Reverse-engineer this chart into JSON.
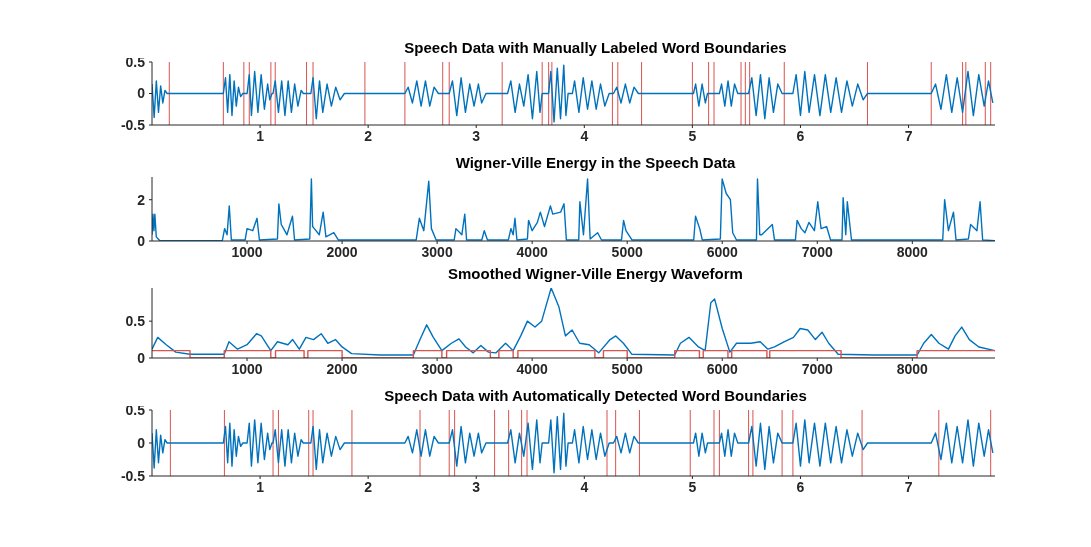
{
  "chart_data": [
    {
      "type": "line",
      "title": "Speech Data with Manually Labeled Word Boundaries",
      "xlim": [
        0,
        7.8
      ],
      "xticks": [
        1,
        2,
        3,
        4,
        5,
        6,
        7
      ],
      "ylim": [
        -0.5,
        0.5
      ],
      "yticks": [
        -0.5,
        0,
        0.5
      ],
      "grid": false,
      "series": [
        {
          "color": "#0072bd",
          "x": [
            0,
            0.02,
            0.04,
            0.06,
            0.08,
            0.1,
            0.12,
            0.14,
            0.16,
            0.66,
            0.68,
            0.7,
            0.72,
            0.74,
            0.76,
            0.78,
            0.8,
            0.82,
            0.84,
            0.88,
            0.9,
            0.92,
            0.95,
            0.98,
            1.01,
            1.04,
            1.07,
            1.09,
            1.11,
            1.12,
            1.14,
            1.17,
            1.2,
            1.23,
            1.26,
            1.29,
            1.32,
            1.35,
            1.38,
            1.4,
            1.47,
            1.49,
            1.52,
            1.55,
            1.58,
            1.62,
            1.66,
            1.7,
            1.74,
            1.78,
            2.34,
            2.37,
            2.41,
            2.45,
            2.49,
            2.53,
            2.57,
            2.61,
            2.65,
            2.75,
            2.78,
            2.82,
            2.86,
            2.9,
            2.94,
            2.98,
            3.02,
            3.05,
            3.09,
            3.29,
            3.32,
            3.36,
            3.4,
            3.44,
            3.48,
            3.52,
            3.56,
            3.59,
            3.61,
            3.67,
            3.69,
            3.72,
            3.75,
            3.78,
            3.81,
            3.83,
            3.85,
            3.89,
            3.91,
            3.95,
            3.99,
            4.03,
            4.07,
            4.11,
            4.15,
            4.19,
            4.23,
            4.27,
            4.3,
            4.34,
            4.38,
            4.42,
            4.46,
            4.5,
            5.01,
            5.03,
            5.06,
            5.09,
            5.12,
            5.14,
            5.25,
            5.27,
            5.3,
            5.33,
            5.36,
            5.39,
            5.42,
            5.52,
            5.55,
            5.59,
            5.63,
            5.67,
            5.71,
            5.75,
            5.79,
            5.83,
            5.93,
            5.96,
            6,
            6.04,
            6.08,
            6.13,
            6.18,
            6.23,
            6.28,
            6.33,
            6.38,
            6.43,
            6.48,
            6.53,
            6.58,
            6.62,
            7.21,
            7.25,
            7.3,
            7.35,
            7.4,
            7.45,
            7.5,
            7.55,
            7.6,
            7.65,
            7.7,
            7.74,
            7.78
          ],
          "values": [
            0.15,
            -0.38,
            0.2,
            -0.3,
            0.12,
            -0.15,
            0.05,
            0,
            0,
            0,
            0.25,
            -0.3,
            0.3,
            -0.35,
            0.2,
            -0.2,
            0.1,
            -0.05,
            0,
            0,
            0.3,
            -0.35,
            0.35,
            -0.3,
            0.3,
            -0.25,
            0.15,
            -0.1,
            0,
            0,
            0.2,
            -0.3,
            0.2,
            -0.35,
            0.2,
            -0.3,
            0.15,
            -0.2,
            0.05,
            0,
            0,
            0.25,
            -0.4,
            0.2,
            -0.3,
            0.15,
            -0.2,
            0.1,
            -0.1,
            0,
            0,
            0.1,
            -0.15,
            0.2,
            -0.2,
            0.2,
            -0.2,
            0.1,
            0,
            0,
            0.2,
            -0.35,
            0.25,
            -0.3,
            0.15,
            -0.2,
            0.15,
            -0.15,
            0,
            0,
            0.2,
            -0.3,
            0.15,
            -0.2,
            0.3,
            -0.4,
            0.35,
            -0.3,
            0,
            0,
            0.35,
            -0.45,
            0.4,
            -0.4,
            0.45,
            -0.35,
            0,
            0,
            0.2,
            -0.3,
            0.25,
            -0.25,
            0.2,
            -0.25,
            0.15,
            -0.2,
            0,
            0,
            0.1,
            -0.15,
            0.15,
            -0.15,
            0.1,
            0,
            0,
            0.15,
            -0.2,
            0.15,
            -0.15,
            0,
            0,
            0.15,
            -0.2,
            0.2,
            -0.2,
            0.15,
            0,
            0,
            0.25,
            -0.35,
            0.3,
            -0.4,
            0.25,
            -0.3,
            0.15,
            0,
            0,
            0.3,
            -0.35,
            0.35,
            -0.3,
            0.3,
            -0.35,
            0.3,
            -0.3,
            0.25,
            -0.3,
            0.2,
            -0.2,
            0.15,
            -0.1,
            0,
            0,
            0.15,
            -0.25,
            0.3,
            -0.3,
            0.25,
            -0.3,
            0.35,
            -0.35,
            0.3,
            -0.2,
            0.2,
            -0.15
          ]
        }
      ],
      "ref_lines": [
        {
          "axis": "x",
          "value": 0.16,
          "color": "#d9534f"
        },
        {
          "axis": "x",
          "value": 0.66,
          "color": "#d9534f"
        },
        {
          "axis": "x",
          "value": 0.85,
          "color": "#d9534f"
        },
        {
          "axis": "x",
          "value": 0.9,
          "color": "#d9534f"
        },
        {
          "axis": "x",
          "value": 1.1,
          "color": "#d9534f"
        },
        {
          "axis": "x",
          "value": 1.14,
          "color": "#d9534f"
        },
        {
          "axis": "x",
          "value": 1.43,
          "color": "#d9534f"
        },
        {
          "axis": "x",
          "value": 1.49,
          "color": "#d9534f"
        },
        {
          "axis": "x",
          "value": 1.97,
          "color": "#d9534f"
        },
        {
          "axis": "x",
          "value": 2.34,
          "color": "#d9534f"
        },
        {
          "axis": "x",
          "value": 2.69,
          "color": "#d9534f"
        },
        {
          "axis": "x",
          "value": 2.75,
          "color": "#d9534f"
        },
        {
          "axis": "x",
          "value": 3.24,
          "color": "#d9534f"
        },
        {
          "axis": "x",
          "value": 3.61,
          "color": "#d9534f"
        },
        {
          "axis": "x",
          "value": 3.67,
          "color": "#d9534f"
        },
        {
          "axis": "x",
          "value": 3.7,
          "color": "#d9534f"
        },
        {
          "axis": "x",
          "value": 4.26,
          "color": "#d9534f"
        },
        {
          "axis": "x",
          "value": 4.31,
          "color": "#d9534f"
        },
        {
          "axis": "x",
          "value": 4.53,
          "color": "#d9534f"
        },
        {
          "axis": "x",
          "value": 5.0,
          "color": "#d9534f"
        },
        {
          "axis": "x",
          "value": 5.15,
          "color": "#d9534f"
        },
        {
          "axis": "x",
          "value": 5.2,
          "color": "#d9534f"
        },
        {
          "axis": "x",
          "value": 5.45,
          "color": "#d9534f"
        },
        {
          "axis": "x",
          "value": 5.49,
          "color": "#d9534f"
        },
        {
          "axis": "x",
          "value": 5.53,
          "color": "#d9534f"
        },
        {
          "axis": "x",
          "value": 5.85,
          "color": "#d9534f"
        },
        {
          "axis": "x",
          "value": 6.62,
          "color": "#d9534f"
        },
        {
          "axis": "x",
          "value": 7.21,
          "color": "#d9534f"
        },
        {
          "axis": "x",
          "value": 7.5,
          "color": "#d9534f"
        },
        {
          "axis": "x",
          "value": 7.53,
          "color": "#d9534f"
        },
        {
          "axis": "x",
          "value": 7.71,
          "color": "#d9534f"
        },
        {
          "axis": "x",
          "value": 7.76,
          "color": "#d9534f"
        }
      ]
    },
    {
      "type": "line",
      "title": "Wigner-Ville Energy in the Speech Data",
      "xlim": [
        0,
        8870
      ],
      "xticks": [
        1000,
        2000,
        3000,
        4000,
        5000,
        6000,
        7000,
        8000
      ],
      "ylim": [
        0,
        3.1
      ],
      "yticks": [
        0,
        2
      ],
      "grid": false,
      "series": [
        {
          "color": "#0072bd",
          "x": [
            0,
            10,
            20,
            30,
            45,
            80,
            740,
            764,
            790,
            813,
            835,
            980,
            1000,
            1060,
            1105,
            1130,
            1320,
            1335,
            1360,
            1385,
            1420,
            1478,
            1500,
            1660,
            1677,
            1690,
            1708,
            1760,
            1801,
            1830,
            1913,
            1960,
            2780,
            2813,
            2860,
            2912,
            2940,
            2990,
            3180,
            3198,
            3260,
            3291,
            3310,
            3470,
            3496,
            3530,
            3750,
            3776,
            3800,
            3819,
            3840,
            3950,
            3962,
            4000,
            4055,
            4086,
            4130,
            4192,
            4217,
            4300,
            4335,
            4360,
            4490,
            4502,
            4540,
            4583,
            4610,
            4689,
            4730,
            4940,
            4962,
            4987,
            5050,
            5700,
            5719,
            5763,
            5790,
            5980,
            5999,
            6042,
            6086,
            6110,
            6150,
            6360,
            6371,
            6395,
            6415,
            6527,
            6550,
            6770,
            6788,
            6831,
            6870,
            6912,
            6970,
            7005,
            7040,
            7098,
            7140,
            7260,
            7272,
            7300,
            7316,
            7360,
            8320,
            8340,
            8380,
            8433,
            8460,
            8590,
            8613,
            8680,
            8713,
            8740,
            8870
          ],
          "values": [
            0.3,
            1.3,
            0.5,
            1.3,
            0.2,
            0.02,
            0.02,
            0.6,
            0.3,
            1.7,
            0.05,
            0.05,
            0.6,
            0.5,
            1.1,
            0.05,
            0.1,
            1.8,
            0.8,
            0.6,
            0.3,
            1.2,
            0.05,
            0.1,
            3.0,
            0.7,
            0.6,
            0.3,
            1.4,
            0.2,
            0.4,
            0.05,
            0.05,
            1.1,
            0.5,
            2.9,
            0.6,
            0.05,
            0.05,
            0.6,
            0.3,
            1.3,
            0.05,
            0.05,
            0.5,
            0.05,
            0.05,
            0.6,
            0.3,
            1.1,
            0.05,
            0.1,
            1.0,
            0.5,
            0.9,
            1.4,
            0.7,
            1.7,
            1.3,
            1.4,
            1.8,
            0.05,
            0.05,
            1.9,
            0.3,
            3.0,
            0.1,
            0.4,
            0.05,
            0.05,
            1.0,
            0.5,
            0.05,
            0.05,
            1.2,
            0.6,
            0.05,
            0.1,
            3.0,
            2.3,
            2.0,
            0.4,
            0.05,
            0.05,
            3.0,
            0.3,
            0.3,
            0.8,
            0.05,
            0.05,
            1.0,
            0.6,
            0.4,
            0.9,
            0.5,
            1.9,
            0.6,
            0.7,
            0.05,
            0.05,
            2.1,
            0.3,
            1.9,
            0.05,
            0.05,
            2.0,
            0.5,
            1.4,
            0.05,
            0.1,
            0.8,
            0.5,
            1.9,
            0.05,
            0.02
          ]
        }
      ]
    },
    {
      "type": "line",
      "title": "Smoothed Wigner-Ville Energy Waveform",
      "xlim": [
        0,
        8870
      ],
      "xticks": [
        1000,
        2000,
        3000,
        4000,
        5000,
        6000,
        7000,
        8000
      ],
      "ylim": [
        0,
        0.95
      ],
      "yticks": [
        0,
        0.5
      ],
      "grid": false,
      "series": [
        {
          "color": "#0072bd",
          "x": [
            0,
            60,
            150,
            250,
            400,
            760,
            810,
            900,
            1000,
            1100,
            1150,
            1250,
            1320,
            1430,
            1480,
            1550,
            1620,
            1700,
            1780,
            1850,
            1930,
            2000,
            2100,
            2400,
            2750,
            2820,
            2890,
            2960,
            3050,
            3150,
            3230,
            3300,
            3380,
            3460,
            3540,
            3620,
            3720,
            3800,
            3880,
            3950,
            4030,
            4100,
            4200,
            4280,
            4350,
            4420,
            4500,
            4600,
            4700,
            4820,
            4880,
            4960,
            5050,
            5500,
            5560,
            5650,
            5750,
            5820,
            5880,
            5920,
            6000,
            6080,
            6150,
            6300,
            6400,
            6480,
            6550,
            6650,
            6750,
            6820,
            6900,
            6980,
            7050,
            7120,
            7220,
            7600,
            8050,
            8120,
            8200,
            8280,
            8380,
            8450,
            8520,
            8600,
            8700,
            8870
          ],
          "values": [
            0.12,
            0.28,
            0.18,
            0.08,
            0.05,
            0.05,
            0.22,
            0.12,
            0.18,
            0.33,
            0.3,
            0.1,
            0.22,
            0.18,
            0.25,
            0.12,
            0.28,
            0.25,
            0.33,
            0.2,
            0.25,
            0.15,
            0.06,
            0.04,
            0.04,
            0.25,
            0.45,
            0.28,
            0.1,
            0.2,
            0.26,
            0.15,
            0.07,
            0.17,
            0.08,
            0.07,
            0.2,
            0.1,
            0.3,
            0.5,
            0.42,
            0.5,
            0.95,
            0.7,
            0.3,
            0.38,
            0.2,
            0.18,
            0.07,
            0.25,
            0.3,
            0.2,
            0.05,
            0.04,
            0.2,
            0.28,
            0.15,
            0.1,
            0.75,
            0.8,
            0.4,
            0.08,
            0.2,
            0.2,
            0.22,
            0.12,
            0.15,
            0.22,
            0.28,
            0.4,
            0.38,
            0.25,
            0.35,
            0.2,
            0.05,
            0.04,
            0.04,
            0.2,
            0.32,
            0.2,
            0.12,
            0.3,
            0.42,
            0.25,
            0.15,
            0.1
          ]
        },
        {
          "type": "step",
          "color": "#d9534f",
          "x": [
            0,
            400,
            760,
            1250,
            1300,
            1600,
            1640,
            2000,
            2750,
            3050,
            3100,
            3560,
            3650,
            3800,
            3850,
            4660,
            4750,
            5000,
            5500,
            5760,
            5800,
            6060,
            6100,
            6470,
            6500,
            7250,
            8050,
            8870
          ],
          "values": [
            0.1,
            0,
            0.1,
            0,
            0.1,
            0,
            0.1,
            0,
            0.1,
            0,
            0.1,
            0,
            0.1,
            0,
            0.1,
            0,
            0.1,
            0,
            0.1,
            0,
            0.1,
            0,
            0.1,
            0,
            0.1,
            0,
            0.1,
            0.1
          ]
        }
      ]
    },
    {
      "type": "line",
      "title": "Speech Data with Automatically Detected Word Boundaries",
      "xlim": [
        0,
        7.8
      ],
      "xticks": [
        1,
        2,
        3,
        4,
        5,
        6,
        7
      ],
      "ylim": [
        -0.5,
        0.5
      ],
      "yticks": [
        -0.5,
        0,
        0.5
      ],
      "grid": false,
      "series": [
        {
          "color": "#0072bd",
          "x": [
            0,
            0.02,
            0.04,
            0.06,
            0.08,
            0.1,
            0.12,
            0.14,
            0.16,
            0.66,
            0.68,
            0.7,
            0.72,
            0.74,
            0.76,
            0.78,
            0.8,
            0.82,
            0.84,
            0.88,
            0.9,
            0.92,
            0.95,
            0.98,
            1.01,
            1.04,
            1.07,
            1.09,
            1.11,
            1.12,
            1.14,
            1.17,
            1.2,
            1.23,
            1.26,
            1.29,
            1.32,
            1.35,
            1.38,
            1.4,
            1.47,
            1.49,
            1.52,
            1.55,
            1.58,
            1.62,
            1.66,
            1.7,
            1.74,
            1.78,
            2.34,
            2.37,
            2.41,
            2.45,
            2.49,
            2.53,
            2.57,
            2.61,
            2.65,
            2.75,
            2.78,
            2.82,
            2.86,
            2.9,
            2.94,
            2.98,
            3.02,
            3.05,
            3.09,
            3.29,
            3.32,
            3.36,
            3.4,
            3.44,
            3.48,
            3.52,
            3.56,
            3.59,
            3.61,
            3.67,
            3.69,
            3.72,
            3.75,
            3.78,
            3.81,
            3.83,
            3.85,
            3.89,
            3.91,
            3.95,
            3.99,
            4.03,
            4.07,
            4.11,
            4.15,
            4.19,
            4.23,
            4.27,
            4.3,
            4.34,
            4.38,
            4.42,
            4.46,
            4.5,
            5.01,
            5.03,
            5.06,
            5.09,
            5.12,
            5.14,
            5.25,
            5.27,
            5.3,
            5.33,
            5.36,
            5.39,
            5.42,
            5.52,
            5.55,
            5.59,
            5.63,
            5.67,
            5.71,
            5.75,
            5.79,
            5.83,
            5.93,
            5.96,
            6,
            6.04,
            6.08,
            6.13,
            6.18,
            6.23,
            6.28,
            6.33,
            6.38,
            6.43,
            6.48,
            6.53,
            6.58,
            6.62,
            7.21,
            7.25,
            7.3,
            7.35,
            7.4,
            7.45,
            7.5,
            7.55,
            7.6,
            7.65,
            7.7,
            7.74,
            7.78
          ],
          "values": [
            0.15,
            -0.38,
            0.2,
            -0.3,
            0.12,
            -0.15,
            0.05,
            0,
            0,
            0,
            0.25,
            -0.3,
            0.3,
            -0.35,
            0.2,
            -0.2,
            0.1,
            -0.05,
            0,
            0,
            0.3,
            -0.35,
            0.35,
            -0.3,
            0.3,
            -0.25,
            0.15,
            -0.1,
            0,
            0,
            0.2,
            -0.3,
            0.2,
            -0.35,
            0.2,
            -0.3,
            0.15,
            -0.2,
            0.05,
            0,
            0,
            0.25,
            -0.4,
            0.2,
            -0.3,
            0.15,
            -0.2,
            0.1,
            -0.1,
            0,
            0,
            0.1,
            -0.15,
            0.2,
            -0.2,
            0.2,
            -0.2,
            0.1,
            0,
            0,
            0.2,
            -0.35,
            0.25,
            -0.3,
            0.15,
            -0.2,
            0.15,
            -0.15,
            0,
            0,
            0.2,
            -0.3,
            0.15,
            -0.2,
            0.3,
            -0.4,
            0.35,
            -0.3,
            0,
            0,
            0.35,
            -0.45,
            0.4,
            -0.4,
            0.45,
            -0.35,
            0,
            0,
            0.2,
            -0.3,
            0.25,
            -0.25,
            0.2,
            -0.25,
            0.15,
            -0.2,
            0,
            0,
            0.1,
            -0.15,
            0.15,
            -0.15,
            0.1,
            0,
            0,
            0.15,
            -0.2,
            0.15,
            -0.15,
            0,
            0,
            0.15,
            -0.2,
            0.2,
            -0.2,
            0.15,
            0,
            0,
            0.25,
            -0.35,
            0.3,
            -0.4,
            0.25,
            -0.3,
            0.15,
            0,
            0,
            0.3,
            -0.35,
            0.35,
            -0.3,
            0.3,
            -0.35,
            0.3,
            -0.3,
            0.25,
            -0.3,
            0.2,
            -0.2,
            0.15,
            -0.1,
            0,
            0,
            0.15,
            -0.25,
            0.3,
            -0.3,
            0.25,
            -0.3,
            0.35,
            -0.35,
            0.3,
            -0.2,
            0.2,
            -0.15
          ]
        }
      ],
      "ref_lines": [
        {
          "axis": "x",
          "value": 0.17,
          "color": "#d9534f"
        },
        {
          "axis": "x",
          "value": 0.67,
          "color": "#d9534f"
        },
        {
          "axis": "x",
          "value": 1.12,
          "color": "#d9534f"
        },
        {
          "axis": "x",
          "value": 1.17,
          "color": "#d9534f"
        },
        {
          "axis": "x",
          "value": 1.45,
          "color": "#d9534f"
        },
        {
          "axis": "x",
          "value": 1.49,
          "color": "#d9534f"
        },
        {
          "axis": "x",
          "value": 1.85,
          "color": "#d9534f"
        },
        {
          "axis": "x",
          "value": 2.48,
          "color": "#d9534f"
        },
        {
          "axis": "x",
          "value": 2.75,
          "color": "#d9534f"
        },
        {
          "axis": "x",
          "value": 2.8,
          "color": "#d9534f"
        },
        {
          "axis": "x",
          "value": 3.17,
          "color": "#d9534f"
        },
        {
          "axis": "x",
          "value": 3.3,
          "color": "#d9534f"
        },
        {
          "axis": "x",
          "value": 3.42,
          "color": "#d9534f"
        },
        {
          "axis": "x",
          "value": 3.47,
          "color": "#d9534f"
        },
        {
          "axis": "x",
          "value": 4.21,
          "color": "#d9534f"
        },
        {
          "axis": "x",
          "value": 4.29,
          "color": "#d9534f"
        },
        {
          "axis": "x",
          "value": 4.51,
          "color": "#d9534f"
        },
        {
          "axis": "x",
          "value": 4.98,
          "color": "#d9534f"
        },
        {
          "axis": "x",
          "value": 5.2,
          "color": "#d9534f"
        },
        {
          "axis": "x",
          "value": 5.25,
          "color": "#d9534f"
        },
        {
          "axis": "x",
          "value": 5.52,
          "color": "#d9534f"
        },
        {
          "axis": "x",
          "value": 5.56,
          "color": "#d9534f"
        },
        {
          "axis": "x",
          "value": 5.83,
          "color": "#d9534f"
        },
        {
          "axis": "x",
          "value": 5.93,
          "color": "#d9534f"
        },
        {
          "axis": "x",
          "value": 6.57,
          "color": "#d9534f"
        },
        {
          "axis": "x",
          "value": 7.28,
          "color": "#d9534f"
        },
        {
          "axis": "x",
          "value": 7.76,
          "color": "#d9534f"
        }
      ]
    }
  ]
}
